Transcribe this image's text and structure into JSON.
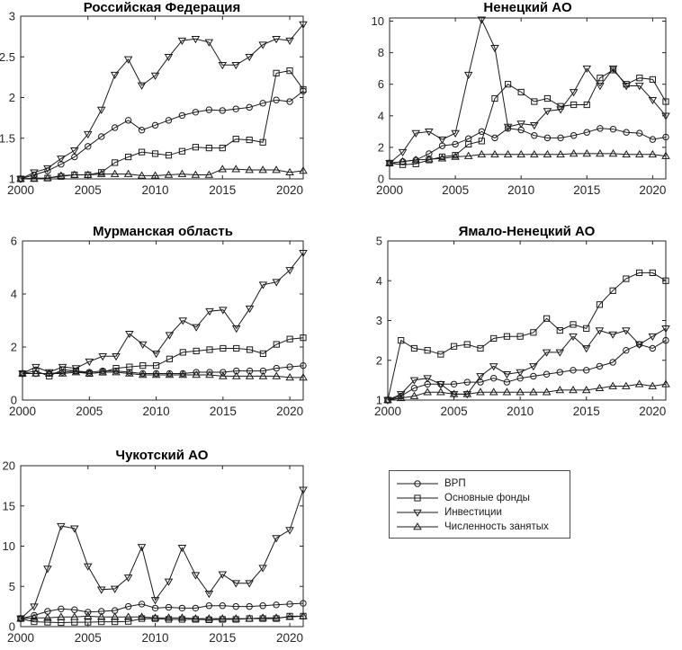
{
  "page": {
    "background": "#ffffff",
    "ink": "#1a1a1a",
    "axis_color": "#262626"
  },
  "legend": {
    "position": "bottom-right-cell",
    "items": [
      {
        "label": "ВРП",
        "marker": "circle"
      },
      {
        "label": "Основные фонды",
        "marker": "square"
      },
      {
        "label": "Инвестиции",
        "marker": "triangle-down"
      },
      {
        "label": "Численность занятых",
        "marker": "triangle-up"
      }
    ]
  },
  "chart_data": [
    {
      "type": "line",
      "title": "Российская Федерация",
      "x": [
        2000,
        2001,
        2002,
        2003,
        2004,
        2005,
        2006,
        2007,
        2008,
        2009,
        2010,
        2011,
        2012,
        2013,
        2014,
        2015,
        2016,
        2017,
        2018,
        2019,
        2020,
        2021
      ],
      "xticks": [
        2000,
        2005,
        2010,
        2015,
        2020
      ],
      "ylim": [
        1,
        3
      ],
      "yticks": [
        1,
        1.5,
        2,
        2.5,
        3
      ],
      "grid": false,
      "series": [
        {
          "name": "ВРП",
          "marker": "circle",
          "values": [
            1,
            1.05,
            1.1,
            1.18,
            1.27,
            1.4,
            1.52,
            1.63,
            1.72,
            1.6,
            1.66,
            1.72,
            1.78,
            1.82,
            1.85,
            1.84,
            1.86,
            1.88,
            1.93,
            1.97,
            1.95,
            2.08
          ]
        },
        {
          "name": "Основные фонды",
          "marker": "square",
          "values": [
            1,
            1.01,
            1.01,
            1.03,
            1.05,
            1.05,
            1.08,
            1.2,
            1.27,
            1.33,
            1.31,
            1.29,
            1.34,
            1.39,
            1.38,
            1.38,
            1.49,
            1.48,
            1.45,
            2.3,
            2.33,
            2.1
          ]
        },
        {
          "name": "Инвестиции",
          "marker": "triangle-down",
          "values": [
            1,
            1.08,
            1.13,
            1.25,
            1.35,
            1.55,
            1.85,
            2.28,
            2.47,
            2.15,
            2.27,
            2.5,
            2.7,
            2.72,
            2.68,
            2.4,
            2.4,
            2.5,
            2.65,
            2.72,
            2.7,
            2.9
          ]
        },
        {
          "name": "Численность занятых",
          "marker": "triangle-up",
          "values": [
            1,
            1,
            1.01,
            1.04,
            1.05,
            1.05,
            1.06,
            1.06,
            1.06,
            1.04,
            1.04,
            1.05,
            1.06,
            1.05,
            1.05,
            1.12,
            1.12,
            1.11,
            1.11,
            1.11,
            1.08,
            1.1
          ]
        }
      ]
    },
    {
      "type": "line",
      "title": "Ненецкий АО",
      "x": [
        2000,
        2001,
        2002,
        2003,
        2004,
        2005,
        2006,
        2007,
        2008,
        2009,
        2010,
        2011,
        2012,
        2013,
        2014,
        2015,
        2016,
        2017,
        2018,
        2019,
        2020,
        2021
      ],
      "xticks": [
        2000,
        2005,
        2010,
        2015,
        2020
      ],
      "ylim": [
        0,
        10.2
      ],
      "yticks": [
        0,
        2,
        4,
        6,
        8,
        10
      ],
      "grid": false,
      "series": [
        {
          "name": "ВРП",
          "marker": "circle",
          "values": [
            1,
            1.1,
            1.2,
            1.6,
            2.1,
            2.2,
            2.55,
            3,
            2.6,
            3.2,
            3.1,
            2.75,
            2.6,
            2.6,
            2.75,
            2.95,
            3.2,
            3.15,
            2.95,
            2.9,
            2.5,
            2.65
          ]
        },
        {
          "name": "Основные фонды",
          "marker": "square",
          "values": [
            1,
            0.9,
            0.95,
            1.2,
            1.4,
            1.5,
            2.2,
            2.4,
            5.1,
            6,
            5.5,
            4.9,
            5.1,
            4.6,
            4.7,
            4.7,
            6.4,
            6.9,
            6,
            6.4,
            6.3,
            4.9
          ]
        },
        {
          "name": "Инвестиции",
          "marker": "triangle-down",
          "values": [
            1,
            1.7,
            2.9,
            3,
            2.5,
            2.9,
            6.6,
            10.1,
            8.3,
            3.3,
            3.5,
            3.4,
            4.3,
            4.4,
            5.5,
            7,
            5.9,
            7,
            5.9,
            5.9,
            5,
            4
          ]
        },
        {
          "name": "Численность занятых",
          "marker": "triangle-up",
          "values": [
            1,
            1.1,
            1.2,
            1.25,
            1.3,
            1.4,
            1.45,
            1.55,
            1.55,
            1.55,
            1.55,
            1.55,
            1.55,
            1.55,
            1.6,
            1.6,
            1.6,
            1.6,
            1.55,
            1.55,
            1.55,
            1.45
          ]
        }
      ]
    },
    {
      "type": "line",
      "title": "Мурманская область",
      "x": [
        2000,
        2001,
        2002,
        2003,
        2004,
        2005,
        2006,
        2007,
        2008,
        2009,
        2010,
        2011,
        2012,
        2013,
        2014,
        2015,
        2016,
        2017,
        2018,
        2019,
        2020,
        2021
      ],
      "xticks": [
        2000,
        2005,
        2010,
        2015,
        2020
      ],
      "ylim": [
        0,
        6
      ],
      "yticks": [
        0,
        2,
        4,
        6
      ],
      "grid": false,
      "series": [
        {
          "name": "ВРП",
          "marker": "circle",
          "values": [
            1,
            1,
            1,
            1.05,
            1.1,
            1.05,
            1.1,
            1.1,
            1.05,
            1,
            1,
            1,
            1,
            1.05,
            1.05,
            1.05,
            1.1,
            1.1,
            1.1,
            1.2,
            1.25,
            1.3
          ]
        },
        {
          "name": "Основные фонды",
          "marker": "square",
          "values": [
            1,
            1.1,
            0.9,
            1.15,
            1.1,
            1,
            1.05,
            1.2,
            1.25,
            1.3,
            1.3,
            1.55,
            1.8,
            1.85,
            1.9,
            1.95,
            1.95,
            1.9,
            1.75,
            2.1,
            2.3,
            2.35
          ]
        },
        {
          "name": "Инвестиции",
          "marker": "triangle-down",
          "values": [
            1,
            1.25,
            1.05,
            1.25,
            1.2,
            1.45,
            1.65,
            1.65,
            2.5,
            2.1,
            1.75,
            2.45,
            3,
            2.75,
            3.35,
            3.4,
            2.7,
            3.45,
            4.35,
            4.45,
            4.9,
            5.55
          ]
        },
        {
          "name": "Численность занятых",
          "marker": "triangle-up",
          "values": [
            1,
            1,
            1,
            1,
            1.05,
            1,
            1.05,
            1.05,
            1,
            0.95,
            0.95,
            0.95,
            0.95,
            0.95,
            0.95,
            0.9,
            0.9,
            0.9,
            0.9,
            0.9,
            0.85,
            0.85
          ]
        }
      ]
    },
    {
      "type": "line",
      "title": "Ямало-Ненецкий АО",
      "x": [
        2000,
        2001,
        2002,
        2003,
        2004,
        2005,
        2006,
        2007,
        2008,
        2009,
        2010,
        2011,
        2012,
        2013,
        2014,
        2015,
        2016,
        2017,
        2018,
        2019,
        2020,
        2021
      ],
      "xticks": [
        2000,
        2005,
        2010,
        2015,
        2020
      ],
      "ylim": [
        1,
        5
      ],
      "yticks": [
        1,
        2,
        3,
        4,
        5
      ],
      "grid": false,
      "series": [
        {
          "name": "ВРП",
          "marker": "circle",
          "values": [
            1,
            1.1,
            1.3,
            1.4,
            1.4,
            1.4,
            1.45,
            1.45,
            1.55,
            1.45,
            1.55,
            1.6,
            1.65,
            1.7,
            1.75,
            1.75,
            1.85,
            1.95,
            2.25,
            2.4,
            2.3,
            2.5
          ]
        },
        {
          "name": "Основные фонды",
          "marker": "square",
          "values": [
            1,
            2.5,
            2.3,
            2.25,
            2.15,
            2.35,
            2.4,
            2.3,
            2.55,
            2.6,
            2.6,
            2.7,
            3.05,
            2.75,
            2.9,
            2.8,
            3.4,
            3.75,
            4.05,
            4.2,
            4.2,
            4
          ]
        },
        {
          "name": "Инвестиции",
          "marker": "triangle-down",
          "values": [
            1,
            1.15,
            1.5,
            1.55,
            1.4,
            1.15,
            1.15,
            1.6,
            1.85,
            1.65,
            1.7,
            1.85,
            2.2,
            2.2,
            2.6,
            2.3,
            2.75,
            2.65,
            2.75,
            2.4,
            2.6,
            2.8
          ]
        },
        {
          "name": "Численность занятых",
          "marker": "triangle-up",
          "values": [
            1,
            1.05,
            1.1,
            1.2,
            1.2,
            1.15,
            1.15,
            1.2,
            1.2,
            1.2,
            1.2,
            1.2,
            1.2,
            1.25,
            1.25,
            1.25,
            1.3,
            1.35,
            1.35,
            1.4,
            1.35,
            1.4
          ]
        }
      ]
    },
    {
      "type": "line",
      "title": "Чукотский АО",
      "x": [
        2000,
        2001,
        2002,
        2003,
        2004,
        2005,
        2006,
        2007,
        2008,
        2009,
        2010,
        2011,
        2012,
        2013,
        2014,
        2015,
        2016,
        2017,
        2018,
        2019,
        2020,
        2021
      ],
      "xticks": [
        2000,
        2005,
        2010,
        2015,
        2020
      ],
      "ylim": [
        0,
        20
      ],
      "yticks": [
        0,
        5,
        10,
        15,
        20
      ],
      "grid": false,
      "series": [
        {
          "name": "ВРП",
          "marker": "circle",
          "values": [
            1,
            1.4,
            1.9,
            2.2,
            2.1,
            1.8,
            1.9,
            2,
            2.5,
            2.8,
            2.3,
            2.4,
            2.3,
            2.3,
            2.6,
            2.6,
            2.5,
            2.5,
            2.6,
            2.7,
            2.8,
            2.9
          ]
        },
        {
          "name": "Основные фонды",
          "marker": "square",
          "values": [
            1,
            0.6,
            0.55,
            0.5,
            0.55,
            0.55,
            0.6,
            0.6,
            0.65,
            1,
            1,
            0.9,
            0.9,
            0.9,
            0.85,
            0.9,
            0.9,
            1,
            1,
            1,
            1.3,
            1.3
          ]
        },
        {
          "name": "Инвестиции",
          "marker": "triangle-down",
          "values": [
            1,
            2.5,
            7.2,
            12.5,
            12.2,
            7.5,
            4.6,
            4.7,
            6.1,
            9.9,
            3.3,
            5.6,
            9.8,
            6.4,
            4.1,
            6.5,
            5.4,
            5.4,
            7.3,
            11,
            12,
            17
          ]
        },
        {
          "name": "Численность занятых",
          "marker": "triangle-up",
          "values": [
            1,
            1.1,
            1.1,
            1.2,
            1.2,
            1.3,
            1.2,
            1.2,
            1.2,
            1.2,
            1.1,
            1.1,
            1.1,
            1,
            1,
            1,
            1,
            1,
            1.1,
            1.1,
            1.2,
            1.3
          ]
        }
      ]
    }
  ]
}
